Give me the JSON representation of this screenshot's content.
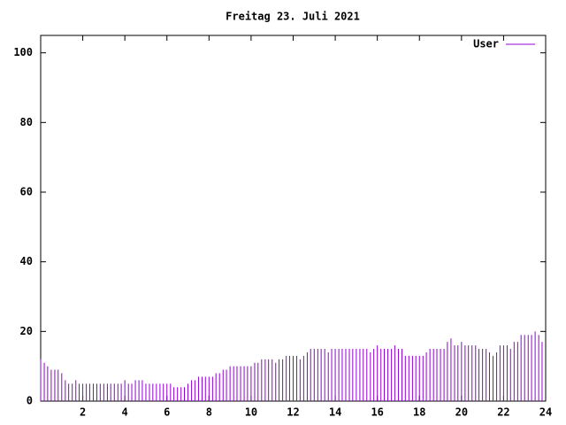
{
  "chart_data": {
    "type": "impulses",
    "title": "Freitag 23. Juli 2021",
    "xlim": [
      0,
      24
    ],
    "xticks": [
      2,
      4,
      6,
      8,
      10,
      12,
      14,
      16,
      18,
      20,
      22,
      24
    ],
    "ylim": [
      0,
      105
    ],
    "yticks": [
      0,
      20,
      40,
      60,
      80,
      100
    ],
    "legend": "top-right",
    "x": [
      0,
      0.17,
      0.33,
      0.5,
      0.67,
      0.83,
      1,
      1.17,
      1.33,
      1.5,
      1.67,
      1.83,
      2,
      2.17,
      2.33,
      2.5,
      2.67,
      2.83,
      3,
      3.17,
      3.33,
      3.5,
      3.67,
      3.83,
      4,
      4.17,
      4.33,
      4.5,
      4.67,
      4.83,
      5,
      5.17,
      5.33,
      5.5,
      5.67,
      5.83,
      6,
      6.17,
      6.33,
      6.5,
      6.67,
      6.83,
      7,
      7.17,
      7.33,
      7.5,
      7.67,
      7.83,
      8,
      8.17,
      8.33,
      8.5,
      8.67,
      8.83,
      9,
      9.17,
      9.33,
      9.5,
      9.67,
      9.83,
      10,
      10.17,
      10.33,
      10.5,
      10.67,
      10.83,
      11,
      11.17,
      11.33,
      11.5,
      11.67,
      11.83,
      12,
      12.17,
      12.33,
      12.5,
      12.67,
      12.83,
      13,
      13.17,
      13.33,
      13.5,
      13.67,
      13.83,
      14,
      14.17,
      14.33,
      14.5,
      14.67,
      14.83,
      15,
      15.17,
      15.33,
      15.5,
      15.67,
      15.83,
      16,
      16.17,
      16.33,
      16.5,
      16.67,
      16.83,
      17,
      17.17,
      17.33,
      17.5,
      17.67,
      17.83,
      18,
      18.17,
      18.33,
      18.5,
      18.67,
      18.83,
      19,
      19.17,
      19.33,
      19.5,
      19.67,
      19.83,
      20,
      20.17,
      20.33,
      20.5,
      20.67,
      20.83,
      21,
      21.17,
      21.33,
      21.5,
      21.67,
      21.83,
      22,
      22.17,
      22.33,
      22.5,
      22.67,
      22.83,
      23,
      23.17,
      23.33,
      23.5,
      23.67,
      23.83
    ],
    "series": [
      {
        "name": "User",
        "color": "#9400d3",
        "values": [
          12,
          11,
          10,
          9,
          9,
          9,
          8,
          6,
          5,
          5,
          6,
          5,
          5,
          5,
          5,
          5,
          5,
          5,
          5,
          5,
          5,
          5,
          5,
          5,
          6,
          5,
          5,
          6,
          6,
          6,
          5,
          5,
          5,
          5,
          5,
          5,
          5,
          5,
          4,
          4,
          4,
          4,
          5,
          6,
          6,
          7,
          7,
          7,
          7,
          7,
          8,
          8,
          9,
          9,
          10,
          10,
          10,
          10,
          10,
          10,
          10,
          11,
          11,
          12,
          12,
          12,
          12,
          11,
          12,
          12,
          13,
          13,
          13,
          13,
          12,
          13,
          14,
          15,
          15,
          15,
          15,
          15,
          14,
          15,
          15,
          15,
          15,
          15,
          15,
          15,
          15,
          15,
          15,
          15,
          14,
          15,
          16,
          15,
          15,
          15,
          15,
          16,
          15,
          15,
          13,
          13,
          13,
          13,
          13,
          13,
          14,
          15,
          15,
          15,
          15,
          15,
          17,
          18,
          16,
          16,
          17,
          16,
          16,
          16,
          16,
          15,
          15,
          15,
          14,
          13,
          14,
          16,
          16,
          16,
          15,
          17,
          17,
          19,
          19,
          19,
          19,
          20,
          19,
          17
        ]
      }
    ]
  }
}
